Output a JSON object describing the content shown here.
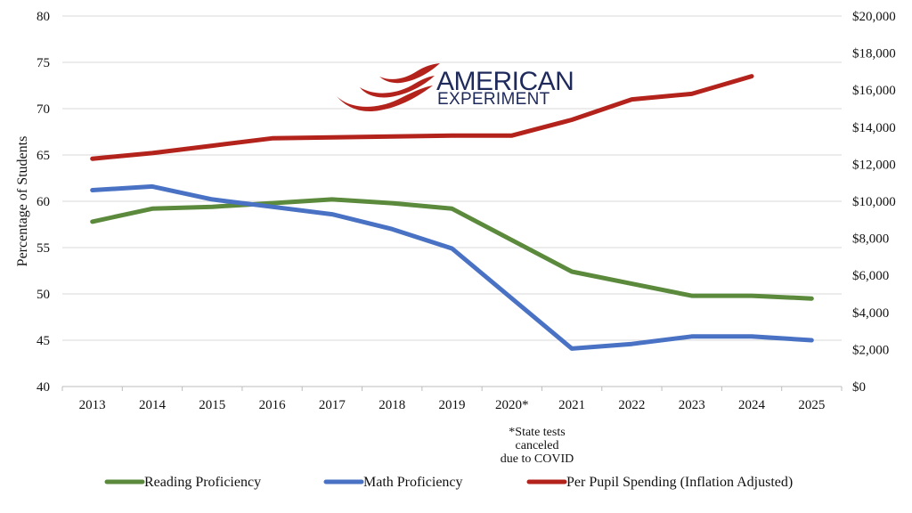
{
  "chart_data": {
    "type": "line",
    "categories": [
      "2013",
      "2014",
      "2015",
      "2016",
      "2017",
      "2018",
      "2019",
      "2020*",
      "2021",
      "2022",
      "2023",
      "2024",
      "2025"
    ],
    "ylabel": "Percentage of Students",
    "ylim": [
      40,
      80
    ],
    "y_ticks": [
      "40",
      "45",
      "50",
      "55",
      "60",
      "65",
      "70",
      "75",
      "80"
    ],
    "y2lim": [
      0,
      20000
    ],
    "y2_ticks": [
      "$0",
      "$2,000",
      "$4,000",
      "$6,000",
      "$8,000",
      "$10,000",
      "$12,000",
      "$14,000",
      "$16,000",
      "$18,000",
      "$20,000"
    ],
    "grid": true,
    "legend_position": "bottom",
    "annotation": [
      "*State tests",
      "canceled",
      "due to COVID"
    ],
    "series": [
      {
        "name": "Reading Proficiency",
        "axis": "left",
        "color": "#5b8a3c",
        "values": [
          57.8,
          59.2,
          59.4,
          59.8,
          60.2,
          59.8,
          59.2,
          null,
          52.4,
          51.1,
          49.8,
          49.8,
          49.5
        ]
      },
      {
        "name": "Math Proficiency",
        "axis": "left",
        "color": "#4a72c4",
        "values": [
          61.2,
          61.6,
          60.2,
          59.4,
          58.6,
          57.0,
          54.9,
          null,
          44.1,
          44.6,
          45.4,
          45.4,
          45.0
        ]
      },
      {
        "name": "Per Pupil Spending (Inflation Adjusted)",
        "axis": "right",
        "color": "#b3231c",
        "values": [
          12300,
          12600,
          13000,
          13400,
          13450,
          13500,
          13550,
          13550,
          14400,
          15500,
          15800,
          16750,
          null
        ]
      }
    ]
  },
  "logo": {
    "line1": "AMERICAN",
    "line2": "EXPERIMENT",
    "color": "#1f2a5c",
    "accent": "#b3231c"
  }
}
